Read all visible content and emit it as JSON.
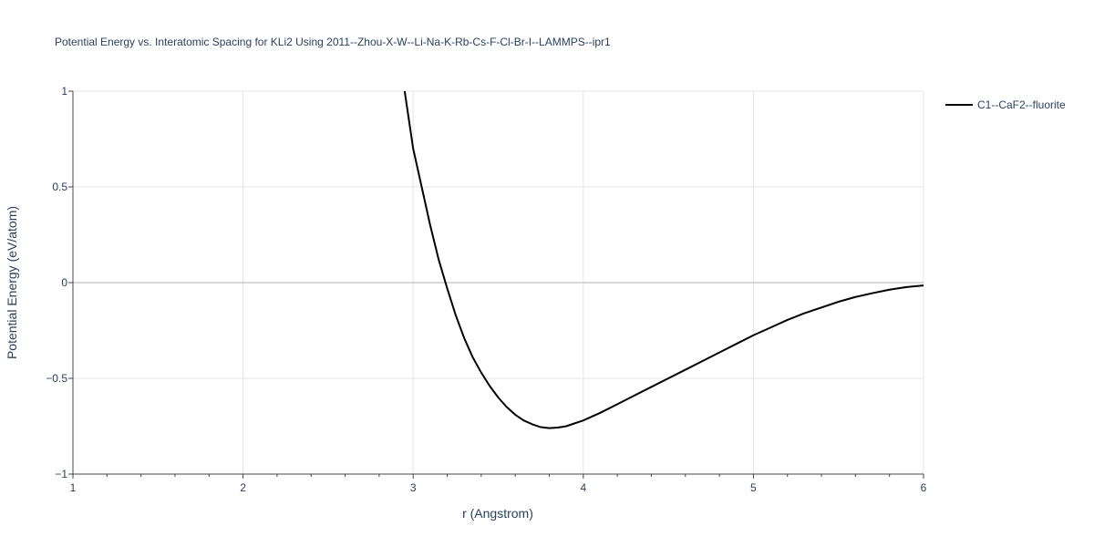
{
  "chart_data": {
    "type": "line",
    "title": "Potential Energy vs. Interatomic Spacing for KLi2 Using 2011--Zhou-X-W--Li-Na-K-Rb-Cs-F-Cl-Br-I--LAMMPS--ipr1",
    "xlabel": "r (Angstrom)",
    "ylabel": "Potential Energy (eV/atom)",
    "xlim": [
      1,
      6
    ],
    "ylim": [
      -1,
      1
    ],
    "x_ticks": [
      1,
      2,
      3,
      4,
      5,
      6
    ],
    "x_tick_labels": [
      "1",
      "2",
      "3",
      "4",
      "5",
      "6"
    ],
    "y_ticks": [
      -1,
      -0.5,
      0,
      0.5,
      1
    ],
    "y_tick_labels": [
      "−1",
      "−0.5",
      "0",
      "0.5",
      "1"
    ],
    "grid": true,
    "legend_position": "top-right",
    "series": [
      {
        "name": "C1--CaF2--fluorite",
        "color": "#000000",
        "x": [
          2.95,
          3.0,
          3.05,
          3.1,
          3.15,
          3.2,
          3.25,
          3.3,
          3.35,
          3.4,
          3.45,
          3.5,
          3.55,
          3.6,
          3.65,
          3.7,
          3.75,
          3.8,
          3.85,
          3.9,
          4.0,
          4.1,
          4.2,
          4.3,
          4.4,
          4.5,
          4.6,
          4.7,
          4.8,
          4.9,
          5.0,
          5.1,
          5.2,
          5.3,
          5.4,
          5.5,
          5.6,
          5.7,
          5.8,
          5.9,
          6.0
        ],
        "y": [
          1.0,
          0.7,
          0.5,
          0.3,
          0.12,
          -0.03,
          -0.17,
          -0.29,
          -0.39,
          -0.47,
          -0.54,
          -0.6,
          -0.65,
          -0.69,
          -0.72,
          -0.74,
          -0.755,
          -0.76,
          -0.757,
          -0.75,
          -0.72,
          -0.68,
          -0.635,
          -0.59,
          -0.545,
          -0.5,
          -0.455,
          -0.41,
          -0.365,
          -0.32,
          -0.275,
          -0.235,
          -0.195,
          -0.16,
          -0.13,
          -0.1,
          -0.075,
          -0.055,
          -0.037,
          -0.023,
          -0.015
        ]
      }
    ]
  }
}
